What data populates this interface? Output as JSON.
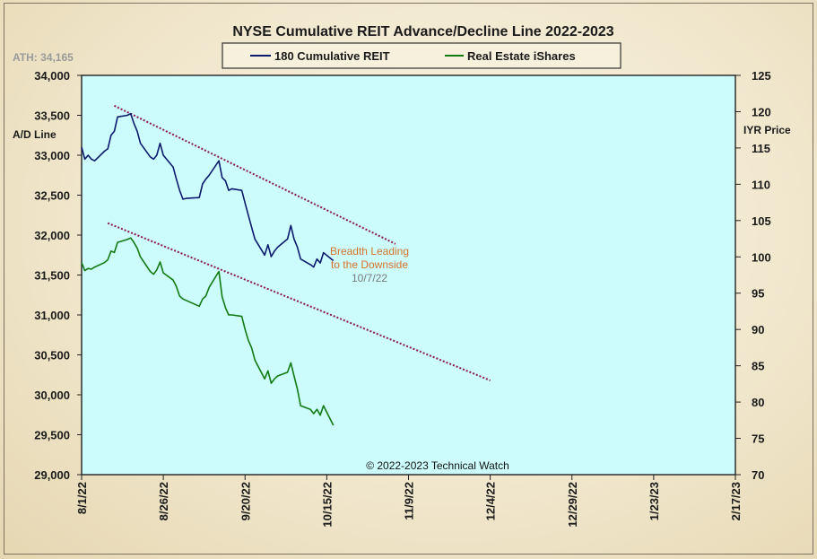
{
  "chart_data": {
    "type": "line",
    "title": "NYSE Cumulative  REIT Advance/Decline  Line 2022-2023",
    "ath_label": "ATH: 34,165",
    "ylabel_left": "A/D Line",
    "ylabel_right": "IYR Price",
    "left_axis": {
      "min": 29000,
      "max": 34000,
      "ticks": [
        29000,
        29500,
        30000,
        30500,
        31000,
        31500,
        32000,
        32500,
        33000,
        33500,
        34000
      ],
      "tick_labels": [
        "29,000",
        "29,500",
        "30,000",
        "30,500",
        "31,000",
        "31,500",
        "32,000",
        "32,500",
        "33,000",
        "33,500",
        "34,000"
      ]
    },
    "right_axis": {
      "min": 70,
      "max": 125,
      "ticks": [
        70,
        75,
        80,
        85,
        90,
        95,
        100,
        105,
        110,
        115,
        120,
        125
      ],
      "tick_labels": [
        "70",
        "75",
        "80",
        "85",
        "90",
        "95",
        "100",
        "105",
        "110",
        "115",
        "120",
        "125"
      ]
    },
    "x_axis": {
      "start": "2022-08-01",
      "end": "2023-02-17",
      "tick_dates": [
        "2022-08-01",
        "2022-08-26",
        "2022-09-20",
        "2022-10-15",
        "2022-11-09",
        "2022-12-04",
        "2022-12-29",
        "2023-01-23",
        "2023-02-17"
      ],
      "tick_labels": [
        "8/1/22",
        "8/26/22",
        "9/20/22",
        "10/15/22",
        "11/9/22",
        "12/4/22",
        "12/29/22",
        "1/23/23",
        "2/17/23"
      ]
    },
    "grid": false,
    "legend_position": "top-center",
    "series": [
      {
        "name": "180 Cumulative REIT",
        "axis": "left",
        "color": "#0b1a6e",
        "points": [
          [
            "2022-08-01",
            33100
          ],
          [
            "2022-08-02",
            32950
          ],
          [
            "2022-08-03",
            33000
          ],
          [
            "2022-08-04",
            32950
          ],
          [
            "2022-08-05",
            32930
          ],
          [
            "2022-08-08",
            33050
          ],
          [
            "2022-08-09",
            33080
          ],
          [
            "2022-08-10",
            33250
          ],
          [
            "2022-08-11",
            33300
          ],
          [
            "2022-08-12",
            33480
          ],
          [
            "2022-08-15",
            33500
          ],
          [
            "2022-08-16",
            33520
          ],
          [
            "2022-08-17",
            33400
          ],
          [
            "2022-08-18",
            33300
          ],
          [
            "2022-08-19",
            33150
          ],
          [
            "2022-08-22",
            32980
          ],
          [
            "2022-08-23",
            32950
          ],
          [
            "2022-08-24",
            33000
          ],
          [
            "2022-08-25",
            33150
          ],
          [
            "2022-08-26",
            33000
          ],
          [
            "2022-08-29",
            32850
          ],
          [
            "2022-08-30",
            32700
          ],
          [
            "2022-08-31",
            32560
          ],
          [
            "2022-09-01",
            32450
          ],
          [
            "2022-09-02",
            32460
          ],
          [
            "2022-09-06",
            32470
          ],
          [
            "2022-09-07",
            32640
          ],
          [
            "2022-09-08",
            32700
          ],
          [
            "2022-09-09",
            32750
          ],
          [
            "2022-09-12",
            32930
          ],
          [
            "2022-09-13",
            32720
          ],
          [
            "2022-09-14",
            32680
          ],
          [
            "2022-09-15",
            32560
          ],
          [
            "2022-09-16",
            32580
          ],
          [
            "2022-09-19",
            32560
          ],
          [
            "2022-09-20",
            32400
          ],
          [
            "2022-09-21",
            32250
          ],
          [
            "2022-09-22",
            32100
          ],
          [
            "2022-09-23",
            31950
          ],
          [
            "2022-09-26",
            31750
          ],
          [
            "2022-09-27",
            31880
          ],
          [
            "2022-09-28",
            31730
          ],
          [
            "2022-09-29",
            31800
          ],
          [
            "2022-09-30",
            31850
          ],
          [
            "2022-10-03",
            31950
          ],
          [
            "2022-10-04",
            32120
          ],
          [
            "2022-10-05",
            31950
          ],
          [
            "2022-10-06",
            31850
          ],
          [
            "2022-10-07",
            31700
          ],
          [
            "2022-10-10",
            31630
          ],
          [
            "2022-10-11",
            31600
          ],
          [
            "2022-10-12",
            31700
          ],
          [
            "2022-10-13",
            31650
          ],
          [
            "2022-10-14",
            31780
          ],
          [
            "2022-10-17",
            31680
          ]
        ]
      },
      {
        "name": "Real Estate iShares",
        "axis": "right",
        "color": "#127a12",
        "points": [
          [
            "2022-08-01",
            99.2
          ],
          [
            "2022-08-02",
            98.1
          ],
          [
            "2022-08-03",
            98.4
          ],
          [
            "2022-08-04",
            98.3
          ],
          [
            "2022-08-05",
            98.6
          ],
          [
            "2022-08-08",
            99.2
          ],
          [
            "2022-08-09",
            99.6
          ],
          [
            "2022-08-10",
            100.8
          ],
          [
            "2022-08-11",
            100.6
          ],
          [
            "2022-08-12",
            102.0
          ],
          [
            "2022-08-15",
            102.4
          ],
          [
            "2022-08-16",
            102.6
          ],
          [
            "2022-08-17",
            102.0
          ],
          [
            "2022-08-18",
            101.2
          ],
          [
            "2022-08-19",
            100.0
          ],
          [
            "2022-08-22",
            98.0
          ],
          [
            "2022-08-23",
            97.6
          ],
          [
            "2022-08-24",
            98.2
          ],
          [
            "2022-08-25",
            99.3
          ],
          [
            "2022-08-26",
            97.8
          ],
          [
            "2022-08-29",
            96.8
          ],
          [
            "2022-08-30",
            95.9
          ],
          [
            "2022-08-31",
            94.6
          ],
          [
            "2022-09-01",
            94.2
          ],
          [
            "2022-09-02",
            94.0
          ],
          [
            "2022-09-06",
            93.2
          ],
          [
            "2022-09-07",
            94.2
          ],
          [
            "2022-09-08",
            94.6
          ],
          [
            "2022-09-09",
            95.8
          ],
          [
            "2022-09-12",
            98.0
          ],
          [
            "2022-09-13",
            94.5
          ],
          [
            "2022-09-14",
            93.0
          ],
          [
            "2022-09-15",
            92.0
          ],
          [
            "2022-09-16",
            92.0
          ],
          [
            "2022-09-19",
            91.8
          ],
          [
            "2022-09-20",
            90.0
          ],
          [
            "2022-09-21",
            88.5
          ],
          [
            "2022-09-22",
            87.5
          ],
          [
            "2022-09-23",
            85.8
          ],
          [
            "2022-09-26",
            83.2
          ],
          [
            "2022-09-27",
            84.3
          ],
          [
            "2022-09-28",
            82.6
          ],
          [
            "2022-09-29",
            83.2
          ],
          [
            "2022-09-30",
            83.6
          ],
          [
            "2022-10-03",
            84.1
          ],
          [
            "2022-10-04",
            85.4
          ],
          [
            "2022-10-05",
            83.6
          ],
          [
            "2022-10-06",
            81.8
          ],
          [
            "2022-10-07",
            79.5
          ],
          [
            "2022-10-10",
            79.0
          ],
          [
            "2022-10-11",
            78.4
          ],
          [
            "2022-10-12",
            79.0
          ],
          [
            "2022-10-13",
            78.2
          ],
          [
            "2022-10-14",
            79.5
          ],
          [
            "2022-10-17",
            76.8
          ]
        ]
      }
    ],
    "trendlines": [
      {
        "axis": "left",
        "color": "#8b1a4a",
        "from": [
          "2022-08-11",
          33620
        ],
        "to": [
          "2022-11-05",
          31890
        ]
      },
      {
        "axis": "left",
        "color": "#8b1a4a",
        "from": [
          "2022-08-09",
          32150
        ],
        "to": [
          "2022-12-04",
          30180
        ]
      }
    ],
    "annotations": [
      {
        "text": "Breadth Leading",
        "color": "#d4732c"
      },
      {
        "text": "to the Downside",
        "color": "#d4732c"
      },
      {
        "text": "10/7/22",
        "color": "#7a7a7a"
      }
    ],
    "copyright": "© 2022-2023  Technical  Watch"
  }
}
